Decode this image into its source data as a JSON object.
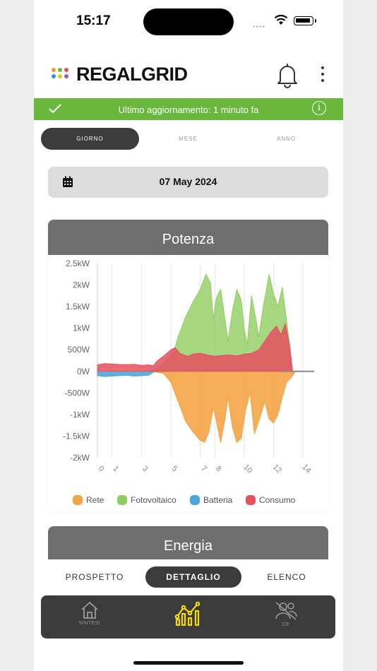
{
  "status_bar": {
    "time": "15:17"
  },
  "app": {
    "logo_text": "REGALGRID"
  },
  "update_bar": {
    "text": "Ultimo aggiornamento: 1 minuto fa"
  },
  "period_tabs": [
    {
      "label": "GIORNO",
      "active": true
    },
    {
      "label": "MESE",
      "active": false
    },
    {
      "label": "ANNO",
      "active": false
    }
  ],
  "date": {
    "value": "07 May 2024"
  },
  "power_card": {
    "title": "Potenza"
  },
  "energy_card": {
    "title": "Energia"
  },
  "view_tabs": [
    {
      "label": "PROSPETTO",
      "active": false
    },
    {
      "label": "DETTAGLIO",
      "active": true
    },
    {
      "label": "ELENCO",
      "active": false
    }
  ],
  "bottom_nav": [
    {
      "label": "SINTESI",
      "icon": "home-icon",
      "active": false
    },
    {
      "label": "",
      "icon": "chart-icon",
      "active": true
    },
    {
      "label": "CE",
      "icon": "community-off-icon",
      "active": false
    }
  ],
  "colors": {
    "accent_green": "#6ab73d",
    "dark": "#3b3b3b",
    "header_gray": "#6e6e6e",
    "active_nav": "#f5d90a"
  },
  "chart_data": {
    "type": "area",
    "title": "Potenza",
    "xlabel": "",
    "ylabel": "",
    "x_ticks": [
      "0",
      "1",
      "3",
      "5",
      "7",
      "8",
      "10",
      "12",
      "14"
    ],
    "y_ticks": [
      "2.5kW",
      "2kW",
      "1.5kW",
      "1kW",
      "500W",
      "0W",
      "-500W",
      "-1kW",
      "-1.5kW",
      "-2kW"
    ],
    "ylim": [
      -2000,
      2500
    ],
    "xlim": [
      0,
      14
    ],
    "grid": true,
    "legend_position": "bottom",
    "series": [
      {
        "name": "Rete",
        "color": "#f5a445",
        "points": [
          [
            0,
            0
          ],
          [
            3,
            0
          ],
          [
            3.5,
            0
          ],
          [
            4,
            -20
          ],
          [
            4.5,
            -50
          ],
          [
            5,
            -250
          ],
          [
            5.5,
            -700
          ],
          [
            6,
            -1150
          ],
          [
            6.5,
            -1400
          ],
          [
            7,
            -1600
          ],
          [
            7.3,
            -1650
          ],
          [
            7.6,
            -1400
          ],
          [
            7.9,
            -850
          ],
          [
            8.1,
            -1150
          ],
          [
            8.4,
            -1650
          ],
          [
            8.7,
            -1100
          ],
          [
            8.9,
            -600
          ],
          [
            9.2,
            -1300
          ],
          [
            9.5,
            -1650
          ],
          [
            9.8,
            -1550
          ],
          [
            10.1,
            -900
          ],
          [
            10.4,
            -500
          ],
          [
            10.7,
            -1450
          ],
          [
            11.1,
            -1050
          ],
          [
            11.4,
            -700
          ],
          [
            11.7,
            -1100
          ],
          [
            12,
            -1200
          ],
          [
            12.3,
            -1000
          ],
          [
            12.6,
            -600
          ],
          [
            12.9,
            -250
          ],
          [
            13.2,
            -150
          ],
          [
            13.5,
            0
          ],
          [
            14,
            0
          ]
        ]
      },
      {
        "name": "Fotovoltaico",
        "color": "#8fcc5f",
        "points": [
          [
            0,
            0
          ],
          [
            3.5,
            0
          ],
          [
            4,
            50
          ],
          [
            4.3,
            150
          ],
          [
            4.8,
            300
          ],
          [
            5.2,
            450
          ],
          [
            5.5,
            800
          ],
          [
            6,
            1250
          ],
          [
            6.5,
            1600
          ],
          [
            7,
            1900
          ],
          [
            7.4,
            2250
          ],
          [
            7.7,
            2050
          ],
          [
            7.9,
            1200
          ],
          [
            8.1,
            1700
          ],
          [
            8.4,
            1900
          ],
          [
            8.7,
            1200
          ],
          [
            8.9,
            700
          ],
          [
            9.2,
            1400
          ],
          [
            9.5,
            1900
          ],
          [
            9.8,
            1650
          ],
          [
            10,
            1000
          ],
          [
            10.2,
            600
          ],
          [
            10.5,
            1750
          ],
          [
            10.8,
            1200
          ],
          [
            11,
            800
          ],
          [
            11.3,
            1500
          ],
          [
            11.7,
            2250
          ],
          [
            12,
            1800
          ],
          [
            12.3,
            1500
          ],
          [
            12.6,
            1950
          ],
          [
            12.9,
            1150
          ],
          [
            13.1,
            600
          ],
          [
            13.3,
            0
          ],
          [
            14,
            0
          ]
        ]
      },
      {
        "name": "Batteria",
        "color": "#4aa6db",
        "points": [
          [
            0,
            -100
          ],
          [
            0.5,
            -120
          ],
          [
            1,
            -110
          ],
          [
            1.5,
            -100
          ],
          [
            2,
            -90
          ],
          [
            2.5,
            -110
          ],
          [
            3,
            -100
          ],
          [
            3.5,
            -90
          ],
          [
            3.8,
            -20
          ],
          [
            4,
            0
          ],
          [
            14,
            0
          ]
        ]
      },
      {
        "name": "Consumo",
        "color": "#e5505f",
        "points": [
          [
            0,
            150
          ],
          [
            0.5,
            180
          ],
          [
            1,
            170
          ],
          [
            1.5,
            160
          ],
          [
            2,
            155
          ],
          [
            2.5,
            165
          ],
          [
            3,
            140
          ],
          [
            3.5,
            150
          ],
          [
            3.8,
            130
          ],
          [
            4.1,
            250
          ],
          [
            4.5,
            350
          ],
          [
            5,
            500
          ],
          [
            5.3,
            550
          ],
          [
            5.6,
            420
          ],
          [
            5.9,
            380
          ],
          [
            6.2,
            350
          ],
          [
            6.5,
            400
          ],
          [
            7,
            420
          ],
          [
            7.5,
            380
          ],
          [
            8,
            350
          ],
          [
            8.5,
            370
          ],
          [
            9,
            380
          ],
          [
            9.5,
            360
          ],
          [
            10,
            400
          ],
          [
            10.5,
            420
          ],
          [
            11,
            500
          ],
          [
            11.4,
            700
          ],
          [
            11.8,
            900
          ],
          [
            12.2,
            1050
          ],
          [
            12.5,
            850
          ],
          [
            12.8,
            1100
          ],
          [
            13.1,
            600
          ],
          [
            13.3,
            0
          ],
          [
            14,
            0
          ]
        ]
      }
    ]
  }
}
